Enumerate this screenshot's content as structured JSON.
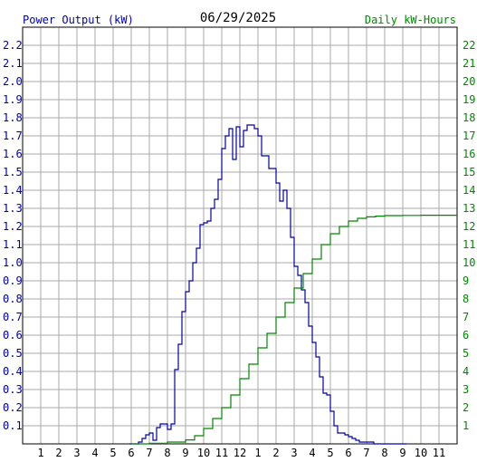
{
  "chart_data": {
    "type": "line",
    "title": "06/29/2025",
    "left_axis_label": "Power Output (kW)",
    "right_axis_label": "Daily kW-Hours",
    "x_tick_labels": [
      "1",
      "2",
      "3",
      "4",
      "5",
      "6",
      "7",
      "8",
      "9",
      "10",
      "11",
      "12",
      "1",
      "2",
      "3",
      "4",
      "5",
      "6",
      "7",
      "8",
      "9",
      "10",
      "11"
    ],
    "x_range_hours": [
      0,
      24
    ],
    "left_ylim": [
      0,
      2.3
    ],
    "left_tick_labels": [
      "0.1",
      "0.2",
      "0.3",
      "0.4",
      "0.5",
      "0.6",
      "0.7",
      "0.8",
      "0.9",
      "1.0",
      "1.1",
      "1.2",
      "1.3",
      "1.4",
      "1.5",
      "1.6",
      "1.7",
      "1.8",
      "1.9",
      "2.0",
      "2.1",
      "2.2"
    ],
    "right_ylim": [
      0,
      23
    ],
    "right_tick_labels": [
      "1",
      "2",
      "3",
      "4",
      "5",
      "6",
      "7",
      "8",
      "9",
      "10",
      "11",
      "12",
      "13",
      "14",
      "15",
      "16",
      "17",
      "18",
      "19",
      "20",
      "21",
      "22"
    ],
    "grid": true,
    "colors": {
      "power": "#0000aa",
      "energy": "#008800",
      "grid": "#aaaaaa"
    },
    "series": [
      {
        "axis": "left",
        "step": true,
        "x": [
          5.9,
          6.4,
          6.6,
          6.8,
          7.0,
          7.2,
          7.4,
          7.6,
          7.8,
          8.0,
          8.2,
          8.4,
          8.6,
          8.8,
          9.0,
          9.2,
          9.4,
          9.6,
          9.8,
          10.0,
          10.2,
          10.4,
          10.6,
          10.8,
          11.0,
          11.2,
          11.4,
          11.6,
          11.8,
          12.0,
          12.2,
          12.4,
          12.6,
          12.8,
          13.0,
          13.2,
          13.4,
          13.6,
          13.8,
          14.0,
          14.2,
          14.4,
          14.6,
          14.8,
          15.0,
          15.2,
          15.4,
          15.6,
          15.8,
          16.0,
          16.2,
          16.4,
          16.6,
          16.8,
          17.0,
          17.2,
          17.4,
          17.6,
          17.8,
          18.0,
          18.2,
          18.4,
          18.6,
          18.8,
          19.0,
          19.2,
          19.4,
          19.6,
          19.8,
          20.0,
          20.2,
          20.4,
          20.6,
          20.8,
          21.0,
          21.2
        ],
        "y": [
          0.0,
          0.01,
          0.03,
          0.05,
          0.06,
          0.02,
          0.09,
          0.11,
          0.11,
          0.08,
          0.11,
          0.41,
          0.55,
          0.73,
          0.84,
          0.9,
          1.0,
          1.08,
          1.21,
          1.22,
          1.23,
          1.3,
          1.35,
          1.46,
          1.63,
          1.7,
          1.74,
          1.57,
          1.75,
          1.64,
          1.73,
          1.76,
          1.76,
          1.74,
          1.7,
          1.59,
          1.59,
          1.52,
          1.52,
          1.44,
          1.34,
          1.4,
          1.3,
          1.14,
          0.98,
          0.93,
          0.85,
          0.78,
          0.65,
          0.56,
          0.48,
          0.37,
          0.28,
          0.27,
          0.18,
          0.1,
          0.06,
          0.06,
          0.05,
          0.04,
          0.03,
          0.02,
          0.01,
          0.01,
          0.01,
          0.01,
          0.0,
          0.0,
          0.0,
          0.0,
          0.0,
          0.0,
          0.0,
          0.0,
          0.0,
          0.0
        ]
      },
      {
        "axis": "right",
        "step": true,
        "x": [
          6.0,
          7.0,
          8.0,
          9.0,
          9.5,
          10.0,
          10.5,
          11.0,
          11.5,
          12.0,
          12.5,
          13.0,
          13.5,
          14.0,
          14.5,
          15.0,
          15.5,
          16.0,
          16.5,
          17.0,
          17.5,
          18.0,
          18.5,
          19.0,
          19.5,
          20.0,
          21.0,
          22.0,
          23.0,
          24.0
        ],
        "y": [
          0.0,
          0.03,
          0.1,
          0.22,
          0.45,
          0.85,
          1.4,
          2.0,
          2.7,
          3.6,
          4.4,
          5.3,
          6.1,
          7.0,
          7.8,
          8.6,
          9.4,
          10.2,
          11.0,
          11.6,
          12.0,
          12.3,
          12.45,
          12.53,
          12.57,
          12.6,
          12.61,
          12.62,
          12.62,
          12.62
        ]
      }
    ]
  }
}
